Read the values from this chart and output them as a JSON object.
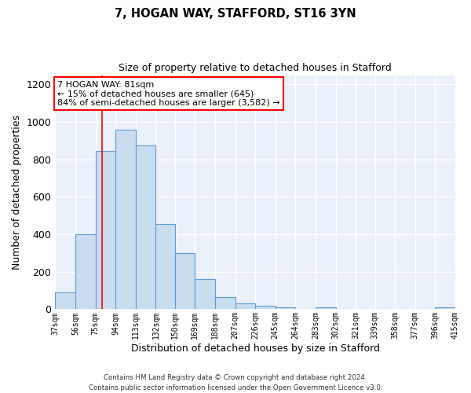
{
  "title1": "7, HOGAN WAY, STAFFORD, ST16 3YN",
  "title2": "Size of property relative to detached houses in Stafford",
  "xlabel": "Distribution of detached houses by size in Stafford",
  "ylabel": "Number of detached properties",
  "bar_color": "#c9ddf0",
  "bar_edge_color": "#5b9bd5",
  "background_color": "#eaf1fb",
  "grid_color": "#ffffff",
  "annotation_text": "7 HOGAN WAY: 81sqm\n← 15% of detached houses are smaller (645)\n84% of semi-detached houses are larger (3,582) →",
  "red_line_x": 81,
  "footer": "Contains HM Land Registry data © Crown copyright and database right 2024.\nContains public sector information licensed under the Open Government Licence v3.0.",
  "ylim": [
    0,
    1250
  ],
  "yticks": [
    0,
    200,
    400,
    600,
    800,
    1000,
    1200
  ],
  "bin_edges": [
    37,
    56,
    75,
    94,
    113,
    132,
    150,
    169,
    188,
    207,
    226,
    245,
    264,
    283,
    302,
    321,
    339,
    358,
    377,
    396,
    415
  ],
  "bar_heights": [
    90,
    400,
    845,
    960,
    875,
    455,
    300,
    160,
    65,
    30,
    20,
    10,
    0,
    10,
    0,
    0,
    0,
    0,
    0,
    10
  ]
}
